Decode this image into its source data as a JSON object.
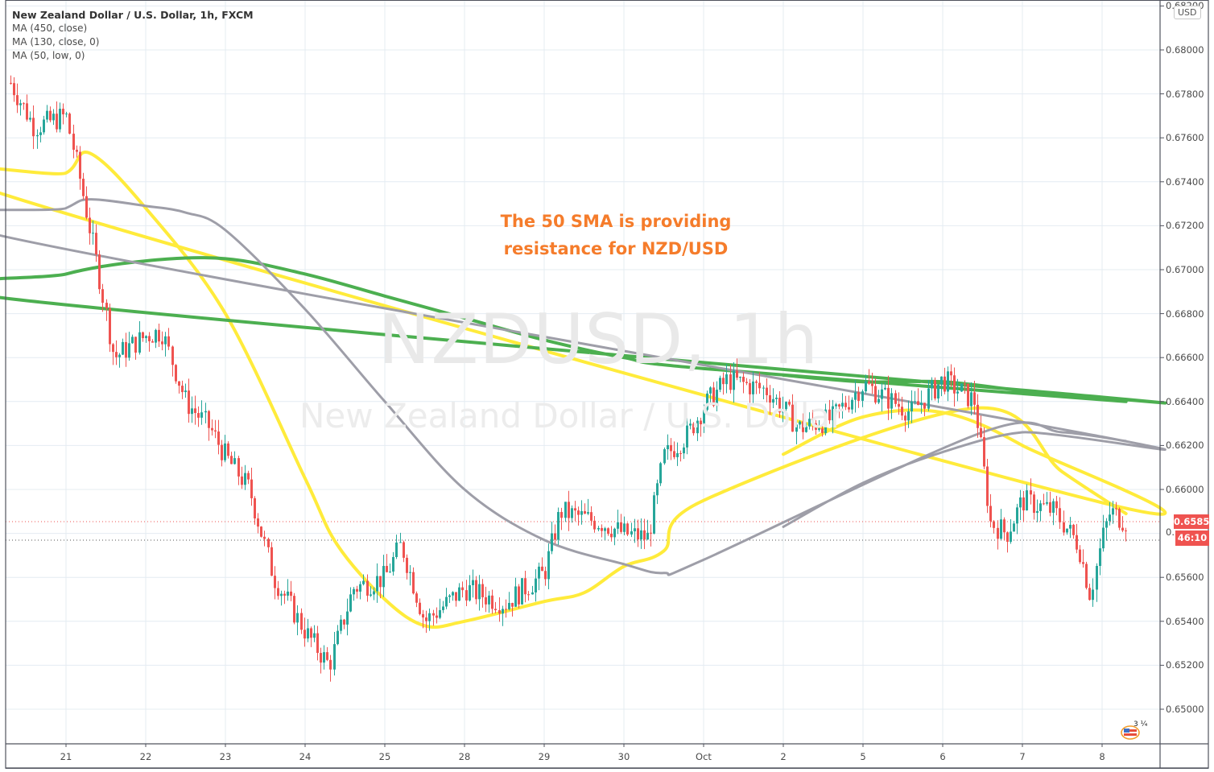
{
  "header": {
    "title": "New Zealand Dollar / U.S. Dollar, 1h, FXCM",
    "indicators": [
      "MA (450, close)",
      "MA (130, close, 0)",
      "MA (50, low, 0)"
    ]
  },
  "watermark": {
    "symbol": "NZDUSD, 1h",
    "description": "New Zealand Dollar / U.S. Dollar"
  },
  "annotation": {
    "line1": "The 50 SMA is providing",
    "line2": "resistance for NZD/USD"
  },
  "price_axis": {
    "currency_badge": "USD",
    "current_price": "0.65852",
    "countdown": "46:10",
    "hidden_tick": "0.",
    "ticks": [
      "0.68200",
      "0.68000",
      "0.67800",
      "0.67600",
      "0.67400",
      "0.67200",
      "0.67000",
      "0.66800",
      "0.66600",
      "0.66400",
      "0.66200",
      "0.66000",
      "0.65600",
      "0.65400",
      "0.65200",
      "0.65000"
    ]
  },
  "time_axis": {
    "ticks": [
      "21",
      "22",
      "23",
      "24",
      "25",
      "28",
      "29",
      "30",
      "Oct",
      "2",
      "5",
      "6",
      "7",
      "8"
    ]
  },
  "event_badge": {
    "count": "3 ¼"
  },
  "colors": {
    "up_candle": "#26a69a",
    "down_candle": "#ef5350",
    "ma450": "#4caf50",
    "ma130": "#9e9ea8",
    "ma50": "#ffeb3b",
    "annotation": "#f57c2b",
    "grid": "#e4ecf2",
    "axis": "#50535e",
    "price_line": "#ef5350"
  },
  "chart_data": {
    "type": "candlestick",
    "title": "New Zealand Dollar / U.S. Dollar, 1h, FXCM",
    "symbol": "NZDUSD",
    "timeframe": "1h",
    "xlabel": "",
    "ylabel": "USD",
    "ylim": [
      0.6485,
      0.6822
    ],
    "x_ticks": [
      "21",
      "22",
      "23",
      "24",
      "25",
      "28",
      "29",
      "30",
      "Oct",
      "2",
      "5",
      "6",
      "7",
      "8"
    ],
    "y_ticks": [
      0.65,
      0.652,
      0.654,
      0.656,
      0.658,
      0.66,
      0.662,
      0.664,
      0.666,
      0.668,
      0.67,
      0.672,
      0.674,
      0.676,
      0.678,
      0.68,
      0.682
    ],
    "last_price": 0.65852,
    "price_path": {
      "description": "Approximate hourly close waypoints read from chart (x = day position, value = price)",
      "points": [
        {
          "x": "20.3",
          "close": 0.6785
        },
        {
          "x": "20.6",
          "close": 0.6765
        },
        {
          "x": "21.0",
          "close": 0.677
        },
        {
          "x": "21.15",
          "close": 0.6745
        },
        {
          "x": "21.4",
          "close": 0.67
        },
        {
          "x": "21.6",
          "close": 0.666
        },
        {
          "x": "22.0",
          "close": 0.667
        },
        {
          "x": "22.2",
          "close": 0.6672
        },
        {
          "x": "22.5",
          "close": 0.664
        },
        {
          "x": "22.8",
          "close": 0.6628
        },
        {
          "x": "23.0",
          "close": 0.6615
        },
        {
          "x": "23.3",
          "close": 0.66
        },
        {
          "x": "23.6",
          "close": 0.656
        },
        {
          "x": "23.8",
          "close": 0.6548
        },
        {
          "x": "24.0",
          "close": 0.6535
        },
        {
          "x": "24.3",
          "close": 0.652
        },
        {
          "x": "24.6",
          "close": 0.6555
        },
        {
          "x": "25.0",
          "close": 0.656
        },
        {
          "x": "25.2",
          "close": 0.6575
        },
        {
          "x": "25.5",
          "close": 0.654
        },
        {
          "x": "28.0",
          "close": 0.6555
        },
        {
          "x": "28.5",
          "close": 0.6548
        },
        {
          "x": "29.0",
          "close": 0.6562
        },
        {
          "x": "29.2",
          "close": 0.659
        },
        {
          "x": "29.7",
          "close": 0.6585
        },
        {
          "x": "30.0",
          "close": 0.658
        },
        {
          "x": "30.3",
          "close": 0.6578
        },
        {
          "x": "30.5",
          "close": 0.6615
        },
        {
          "x": "30.8",
          "close": 0.6625
        },
        {
          "x": "Oct1.0",
          "close": 0.6638
        },
        {
          "x": "Oct1.3",
          "close": 0.665
        },
        {
          "x": "Oct1.8",
          "close": 0.6645
        },
        {
          "x": "2.2",
          "close": 0.6628
        },
        {
          "x": "2.6",
          "close": 0.6632
        },
        {
          "x": "5.0",
          "close": 0.6648
        },
        {
          "x": "5.6",
          "close": 0.6635
        },
        {
          "x": "6.0",
          "close": 0.665
        },
        {
          "x": "6.4",
          "close": 0.664
        },
        {
          "x": "6.6",
          "close": 0.6585
        },
        {
          "x": "6.8",
          "close": 0.658
        },
        {
          "x": "7.0",
          "close": 0.6595
        },
        {
          "x": "7.4",
          "close": 0.659
        },
        {
          "x": "7.7",
          "close": 0.6575
        },
        {
          "x": "7.85",
          "close": 0.6552
        },
        {
          "x": "8.0",
          "close": 0.6578
        },
        {
          "x": "8.1",
          "close": 0.659
        },
        {
          "x": "8.3",
          "close": 0.65852
        }
      ]
    },
    "series": [
      {
        "name": "MA (450, close)",
        "color": "#4caf50",
        "values_by_day": {
          "20.0": 0.6687,
          "21.0": 0.6698,
          "22.0": 0.6704,
          "23.0": 0.6705,
          "24.0": 0.6698,
          "25.0": 0.6688,
          "28.0": 0.6678,
          "29.0": 0.6668,
          "30.0": 0.666,
          "Oct": 0.6655,
          "2": 0.6652,
          "5": 0.6649,
          "6": 0.6649,
          "7": 0.6645,
          "8": 0.6642,
          "8.3": 0.664
        }
      },
      {
        "name": "MA (130, close, 0)",
        "color": "#9e9ea8",
        "values_by_day": {
          "20.0": 0.6715,
          "21.0": 0.6728,
          "21.3": 0.6732,
          "22.0": 0.6729,
          "22.5": 0.6726,
          "23.0": 0.6718,
          "24.0": 0.6682,
          "25.0": 0.664,
          "28.0": 0.66,
          "29.0": 0.6577,
          "30.0": 0.6566,
          "30.5": 0.6562,
          "Oct": 0.6568,
          "2": 0.6583,
          "5": 0.6603,
          "6": 0.6617,
          "6.5": 0.6626,
          "7": 0.6626,
          "7.5": 0.6626,
          "8": 0.6624,
          "8.3": 0.6622
        }
      },
      {
        "name": "MA (50, low, 0)",
        "color": "#ffeb3b",
        "values_by_day": {
          "20.0": 0.6734,
          "21.0": 0.6744,
          "21.3": 0.6753,
          "22.0": 0.6728,
          "23.0": 0.668,
          "24.0": 0.6605,
          "24.4": 0.6575,
          "25.0": 0.655,
          "25.5": 0.6538,
          "28.0": 0.654,
          "29.0": 0.6549,
          "29.5": 0.6553,
          "30.0": 0.6565,
          "30.5": 0.6572,
          "Oct": 0.6595,
          "2": 0.6616,
          "5": 0.6633,
          "6": 0.6635,
          "6.4": 0.6637,
          "7": 0.662,
          "7.5": 0.6608,
          "8": 0.6594,
          "8.3": 0.6589
        }
      }
    ],
    "annotations": [
      "The 50 SMA is providing resistance for NZD/USD"
    ],
    "grid": true,
    "legend_position": "top-left"
  }
}
